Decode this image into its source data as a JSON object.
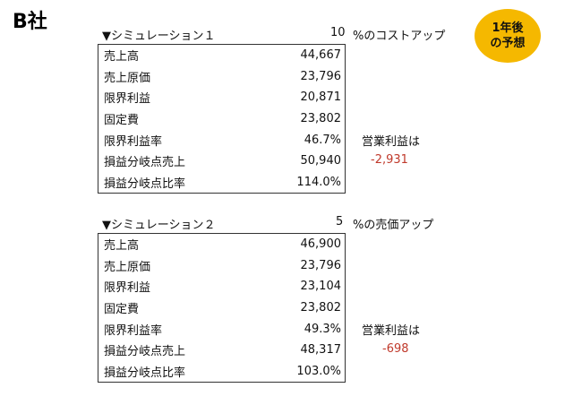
{
  "company": "B社",
  "badge": {
    "line1": "1年後",
    "line2": "の予想"
  },
  "simulations": [
    {
      "title": "▼シミュレーション１",
      "percent": "10",
      "note": "%のコストアップ",
      "rows": [
        {
          "label": "売上高",
          "value": "44,667"
        },
        {
          "label": "売上原価",
          "value": "23,796"
        },
        {
          "label": "限界利益",
          "value": "20,871"
        },
        {
          "label": "固定費",
          "value": "23,802"
        },
        {
          "label": "限界利益率",
          "value": "46.7%"
        },
        {
          "label": "損益分岐点売上",
          "value": "50,940"
        },
        {
          "label": "損益分岐点比率",
          "value": "114.0%"
        }
      ],
      "op_label": "営業利益は",
      "op_value": "-2,931",
      "op_color": "#c0392b"
    },
    {
      "title": "▼シミュレーション２",
      "percent": "5",
      "note": "%の売価アップ",
      "rows": [
        {
          "label": "売上高",
          "value": "46,900"
        },
        {
          "label": "売上原価",
          "value": "23,796"
        },
        {
          "label": "限界利益",
          "value": "23,104"
        },
        {
          "label": "固定費",
          "value": "23,802"
        },
        {
          "label": "限界利益率",
          "value": "49.3%"
        },
        {
          "label": "損益分岐点売上",
          "value": "48,317"
        },
        {
          "label": "損益分岐点比率",
          "value": "103.0%"
        }
      ],
      "op_label": "営業利益は",
      "op_value": "-698",
      "op_color": "#c0392b"
    }
  ]
}
